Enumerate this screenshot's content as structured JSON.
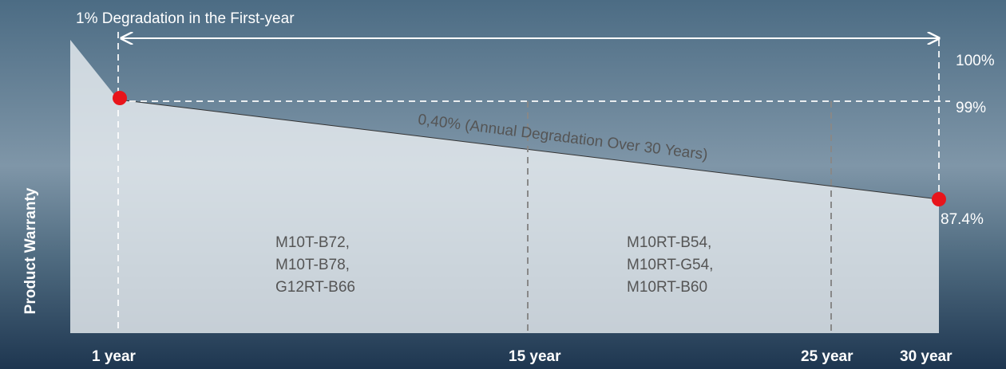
{
  "annotations": {
    "first_year": "1% Degradation in the First-year",
    "annual": "0,40% (Annual Degradation Over 30 Years)"
  },
  "y_labels": [
    "100%",
    "99%",
    "87.4%"
  ],
  "y_axis_title": "Product Warranty",
  "x_labels": [
    "1 year",
    "15 year",
    "25 year",
    "30 year"
  ],
  "models": [
    [
      "M10T-B72,",
      "M10T-B78,",
      "G12RT-B66"
    ],
    [
      "M10RT-B54,",
      "M10RT-G54,",
      "M10RT-B60"
    ]
  ]
}
